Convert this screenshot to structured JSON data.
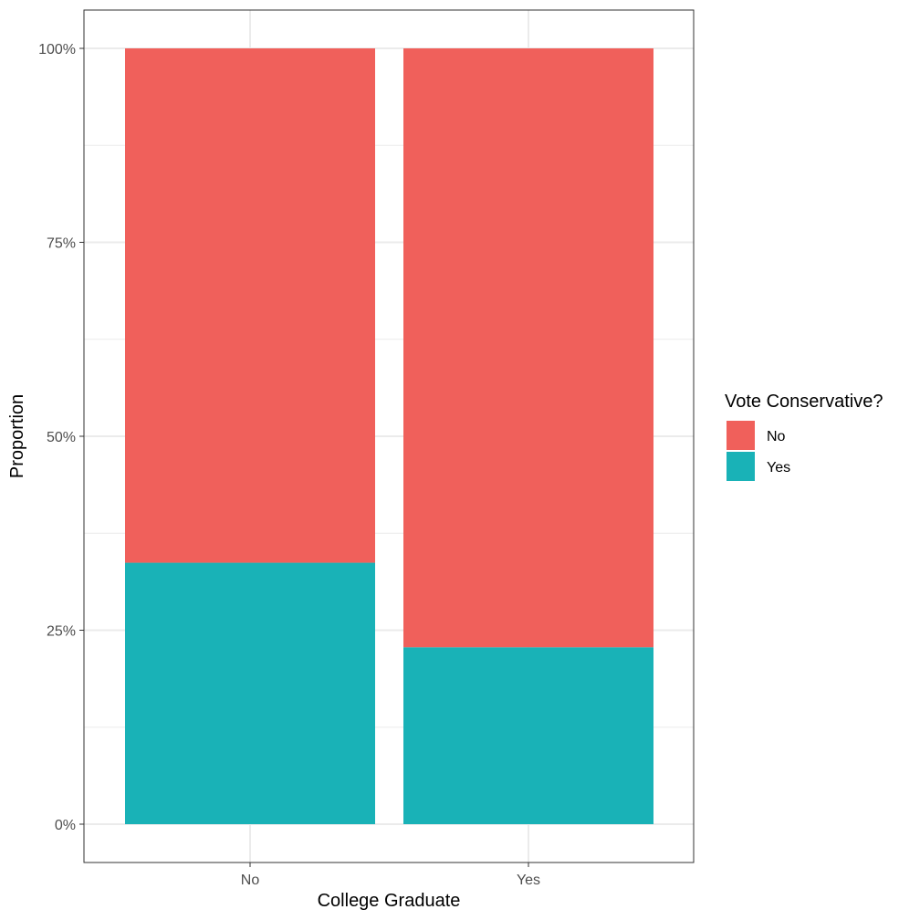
{
  "chart_data": {
    "type": "bar",
    "stacked": true,
    "position": "fill",
    "categories": [
      "No",
      "Yes"
    ],
    "series": [
      {
        "name": "No",
        "values": [
          0.663,
          0.772
        ]
      },
      {
        "name": "Yes",
        "values": [
          0.337,
          0.228
        ]
      }
    ],
    "xlabel": "College Graduate",
    "ylabel": "Proportion",
    "ylim": [
      -0.05,
      1.05
    ],
    "yticks": [
      0,
      0.25,
      0.5,
      0.75,
      1
    ],
    "ytick_labels": [
      "0%",
      "25%",
      "50%",
      "75%",
      "100%"
    ],
    "grid": true,
    "legend": {
      "title": "Vote Conservative?",
      "placement": "right"
    },
    "colors": {
      "No": "#F0605B",
      "Yes": "#19B2B7",
      "grid": "#EBEBEB",
      "panel_border": "#333333"
    }
  }
}
